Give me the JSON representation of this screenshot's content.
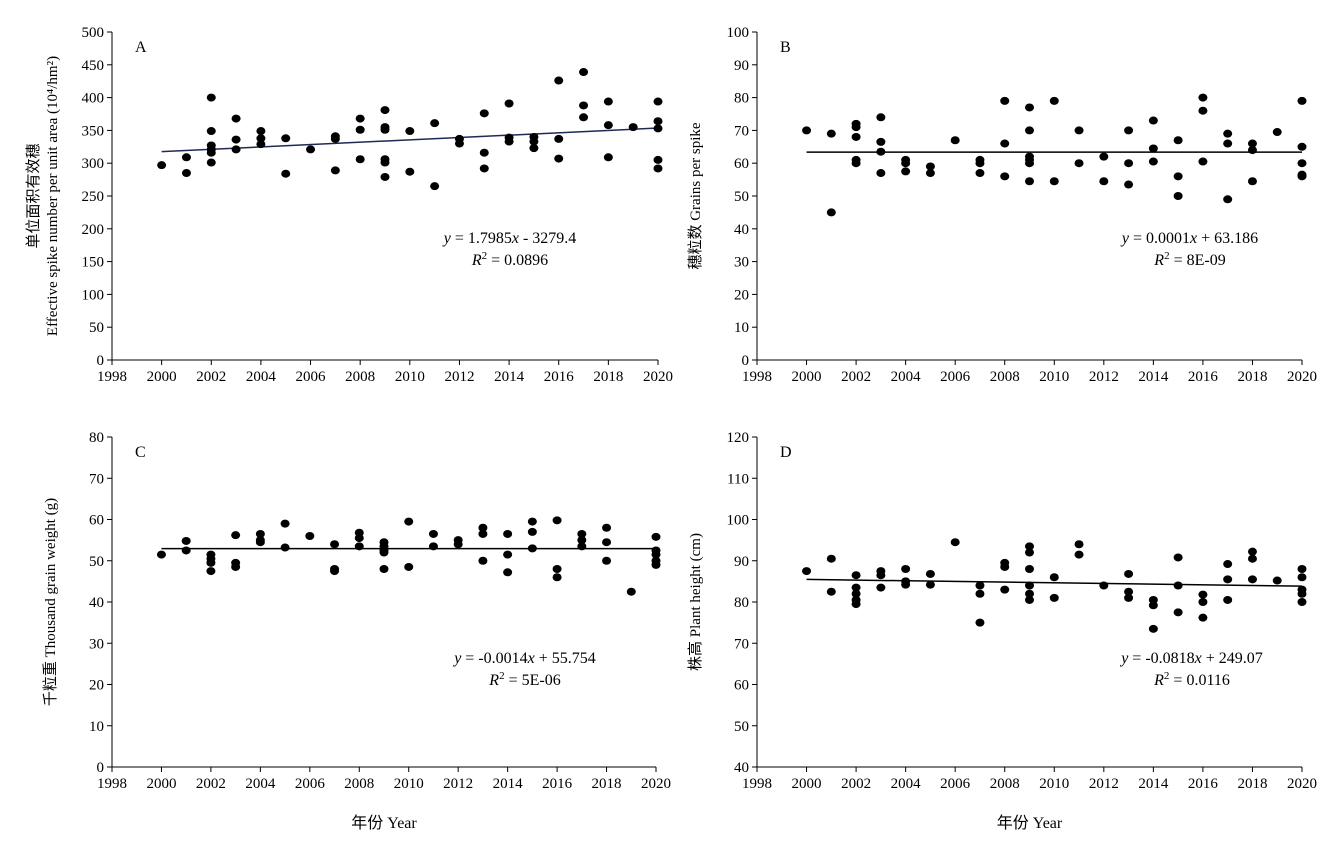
{
  "chart_data": [
    {
      "type": "scatter",
      "panel_label": "A",
      "ylabel": "单位面积有效穗 Effective spike number per unit area (10⁴/hm²)",
      "xlabel": "",
      "xlim": [
        1998,
        2020
      ],
      "ylim": [
        0,
        500
      ],
      "xticks": [
        1998,
        2000,
        2002,
        2004,
        2006,
        2008,
        2010,
        2012,
        2014,
        2016,
        2018,
        2020
      ],
      "yticks": [
        0,
        50,
        100,
        150,
        200,
        250,
        300,
        350,
        400,
        450,
        500
      ],
      "equation": "y = 1.7985x - 3279.4",
      "r2": "R² = 0.0896",
      "trend": {
        "slope": 1.7985,
        "intercept": -3279.4
      },
      "points": [
        [
          2000,
          297
        ],
        [
          2001,
          285
        ],
        [
          2001,
          309
        ],
        [
          2002,
          400
        ],
        [
          2002,
          349
        ],
        [
          2002,
          327
        ],
        [
          2002,
          321
        ],
        [
          2002,
          316
        ],
        [
          2002,
          301
        ],
        [
          2003,
          368
        ],
        [
          2003,
          336
        ],
        [
          2003,
          321
        ],
        [
          2004,
          349
        ],
        [
          2004,
          338
        ],
        [
          2004,
          329
        ],
        [
          2005,
          338
        ],
        [
          2005,
          284
        ],
        [
          2006,
          321
        ],
        [
          2007,
          341
        ],
        [
          2007,
          337
        ],
        [
          2007,
          289
        ],
        [
          2008,
          368
        ],
        [
          2008,
          351
        ],
        [
          2008,
          306
        ],
        [
          2009,
          381
        ],
        [
          2009,
          355
        ],
        [
          2009,
          351
        ],
        [
          2009,
          306
        ],
        [
          2009,
          301
        ],
        [
          2009,
          279
        ],
        [
          2010,
          349
        ],
        [
          2010,
          287
        ],
        [
          2011,
          361
        ],
        [
          2011,
          265
        ],
        [
          2012,
          337
        ],
        [
          2012,
          330
        ],
        [
          2013,
          376
        ],
        [
          2013,
          316
        ],
        [
          2013,
          292
        ],
        [
          2014,
          391
        ],
        [
          2014,
          339
        ],
        [
          2014,
          333
        ],
        [
          2015,
          340
        ],
        [
          2015,
          333
        ],
        [
          2015,
          323
        ],
        [
          2016,
          426
        ],
        [
          2016,
          337
        ],
        [
          2016,
          307
        ],
        [
          2017,
          439
        ],
        [
          2017,
          388
        ],
        [
          2017,
          370
        ],
        [
          2018,
          394
        ],
        [
          2018,
          358
        ],
        [
          2018,
          309
        ],
        [
          2019,
          355
        ],
        [
          2020,
          394
        ],
        [
          2020,
          364
        ],
        [
          2020,
          353
        ],
        [
          2020,
          305
        ],
        [
          2020,
          292
        ]
      ]
    },
    {
      "type": "scatter",
      "panel_label": "B",
      "ylabel": "穗粒数 Grains per spike",
      "xlabel": "",
      "xlim": [
        1998,
        2020
      ],
      "ylim": [
        0,
        100
      ],
      "xticks": [
        1998,
        2000,
        2002,
        2004,
        2006,
        2008,
        2010,
        2012,
        2014,
        2016,
        2018,
        2020
      ],
      "yticks": [
        0,
        10,
        20,
        30,
        40,
        50,
        60,
        70,
        80,
        90,
        100
      ],
      "equation": "y = 0.0001x + 63.186",
      "r2": "R² = 8E-09",
      "trend": {
        "slope": 0.0001,
        "intercept": 63.186
      },
      "points": [
        [
          2000,
          70
        ],
        [
          2001,
          69
        ],
        [
          2001,
          45
        ],
        [
          2002,
          72
        ],
        [
          2002,
          71
        ],
        [
          2002,
          68
        ],
        [
          2002,
          61
        ],
        [
          2002,
          60
        ],
        [
          2003,
          74
        ],
        [
          2003,
          66.5
        ],
        [
          2003,
          63.5
        ],
        [
          2003,
          57
        ],
        [
          2004,
          61
        ],
        [
          2004,
          60
        ],
        [
          2004,
          57.5
        ],
        [
          2005,
          59
        ],
        [
          2005,
          57
        ],
        [
          2006,
          67
        ],
        [
          2007,
          61
        ],
        [
          2007,
          60
        ],
        [
          2007,
          57
        ],
        [
          2008,
          79
        ],
        [
          2008,
          66
        ],
        [
          2008,
          56
        ],
        [
          2009,
          77
        ],
        [
          2009,
          70
        ],
        [
          2009,
          62
        ],
        [
          2009,
          61
        ],
        [
          2009,
          60
        ],
        [
          2009,
          54.5
        ],
        [
          2010,
          79
        ],
        [
          2010,
          54.5
        ],
        [
          2011,
          70
        ],
        [
          2011,
          60
        ],
        [
          2012,
          62
        ],
        [
          2012,
          54.5
        ],
        [
          2013,
          70
        ],
        [
          2013,
          60
        ],
        [
          2013,
          53.5
        ],
        [
          2014,
          73
        ],
        [
          2014,
          64.5
        ],
        [
          2014,
          60.5
        ],
        [
          2015,
          67
        ],
        [
          2015,
          56
        ],
        [
          2015,
          50
        ],
        [
          2016,
          80
        ],
        [
          2016,
          76
        ],
        [
          2016,
          60.5
        ],
        [
          2017,
          69
        ],
        [
          2017,
          66
        ],
        [
          2017,
          49
        ],
        [
          2018,
          66
        ],
        [
          2018,
          64
        ],
        [
          2018,
          54.5
        ],
        [
          2019,
          69.5
        ],
        [
          2020,
          79
        ],
        [
          2020,
          65
        ],
        [
          2020,
          60
        ],
        [
          2020,
          56.5
        ],
        [
          2020,
          56
        ]
      ]
    },
    {
      "type": "scatter",
      "panel_label": "C",
      "ylabel": "千粒重 Thousand grain weight (g)",
      "xlabel": "年份 Year",
      "xlim": [
        1998,
        2020
      ],
      "ylim": [
        0,
        80
      ],
      "xticks": [
        1998,
        2000,
        2002,
        2004,
        2006,
        2008,
        2010,
        2012,
        2014,
        2016,
        2018,
        2020
      ],
      "yticks": [
        0,
        10,
        20,
        30,
        40,
        50,
        60,
        70,
        80
      ],
      "equation": "y = -0.0014x + 55.754",
      "r2": "R² = 5E-06",
      "trend": {
        "slope": -0.0014,
        "intercept": 55.754
      },
      "points": [
        [
          2000,
          51.5
        ],
        [
          2001,
          54.8
        ],
        [
          2001,
          52.5
        ],
        [
          2002,
          51.5
        ],
        [
          2002,
          50.5
        ],
        [
          2002,
          49.5
        ],
        [
          2002,
          47.5
        ],
        [
          2003,
          56.2
        ],
        [
          2003,
          49.5
        ],
        [
          2003,
          48.5
        ],
        [
          2004,
          56.5
        ],
        [
          2004,
          55
        ],
        [
          2004,
          54.5
        ],
        [
          2005,
          59
        ],
        [
          2005,
          53.2
        ],
        [
          2006,
          56
        ],
        [
          2007,
          54
        ],
        [
          2007,
          48
        ],
        [
          2007,
          47.5
        ],
        [
          2008,
          56.8
        ],
        [
          2008,
          55.5
        ],
        [
          2008,
          53.5
        ],
        [
          2009,
          54.5
        ],
        [
          2009,
          53.5
        ],
        [
          2009,
          52.5
        ],
        [
          2009,
          52
        ],
        [
          2009,
          48
        ],
        [
          2010,
          59.5
        ],
        [
          2010,
          48.5
        ],
        [
          2011,
          56.5
        ],
        [
          2011,
          53.5
        ],
        [
          2012,
          55
        ],
        [
          2012,
          54
        ],
        [
          2013,
          58
        ],
        [
          2013,
          56.5
        ],
        [
          2013,
          50
        ],
        [
          2014,
          56.5
        ],
        [
          2014,
          51.5
        ],
        [
          2014,
          47.2
        ],
        [
          2015,
          59.5
        ],
        [
          2015,
          57
        ],
        [
          2015,
          53
        ],
        [
          2016,
          59.8
        ],
        [
          2016,
          48
        ],
        [
          2016,
          46
        ],
        [
          2017,
          56.5
        ],
        [
          2017,
          55
        ],
        [
          2017,
          53.5
        ],
        [
          2018,
          58
        ],
        [
          2018,
          54.5
        ],
        [
          2018,
          50
        ],
        [
          2019,
          42.5
        ],
        [
          2020,
          55.8
        ],
        [
          2020,
          52.5
        ],
        [
          2020,
          51.5
        ],
        [
          2020,
          50
        ],
        [
          2020,
          49
        ]
      ]
    },
    {
      "type": "scatter",
      "panel_label": "D",
      "ylabel": "株高 Plant height (cm)",
      "xlabel": "年份 Year",
      "xlim": [
        1998,
        2020
      ],
      "ylim": [
        40,
        120
      ],
      "xticks": [
        1998,
        2000,
        2002,
        2004,
        2006,
        2008,
        2010,
        2012,
        2014,
        2016,
        2018,
        2020
      ],
      "yticks": [
        40,
        50,
        60,
        70,
        80,
        90,
        100,
        110,
        120
      ],
      "equation": "y = -0.0818x + 249.07",
      "r2": "R² = 0.0116",
      "trend": {
        "slope": -0.0818,
        "intercept": 249.07
      },
      "points": [
        [
          2000,
          87.5
        ],
        [
          2001,
          90.5
        ],
        [
          2001,
          82.5
        ],
        [
          2002,
          86.5
        ],
        [
          2002,
          83.5
        ],
        [
          2002,
          82
        ],
        [
          2002,
          80.5
        ],
        [
          2002,
          79.5
        ],
        [
          2003,
          87.5
        ],
        [
          2003,
          86.5
        ],
        [
          2003,
          83.5
        ],
        [
          2004,
          88
        ],
        [
          2004,
          85
        ],
        [
          2004,
          84.2
        ],
        [
          2005,
          86.8
        ],
        [
          2005,
          84.2
        ],
        [
          2006,
          94.5
        ],
        [
          2007,
          84
        ],
        [
          2007,
          82
        ],
        [
          2007,
          75
        ],
        [
          2008,
          89.5
        ],
        [
          2008,
          88.5
        ],
        [
          2008,
          83
        ],
        [
          2009,
          93.5
        ],
        [
          2009,
          92
        ],
        [
          2009,
          88
        ],
        [
          2009,
          84
        ],
        [
          2009,
          82
        ],
        [
          2009,
          80.5
        ],
        [
          2010,
          86
        ],
        [
          2010,
          81
        ],
        [
          2011,
          94
        ],
        [
          2011,
          91.5
        ],
        [
          2012,
          84
        ],
        [
          2013,
          86.8
        ],
        [
          2013,
          82.5
        ],
        [
          2013,
          81
        ],
        [
          2014,
          80.5
        ],
        [
          2014,
          79.2
        ],
        [
          2014,
          73.5
        ],
        [
          2015,
          90.8
        ],
        [
          2015,
          84
        ],
        [
          2015,
          77.5
        ],
        [
          2016,
          81.8
        ],
        [
          2016,
          80
        ],
        [
          2016,
          76.2
        ],
        [
          2017,
          89.2
        ],
        [
          2017,
          85.5
        ],
        [
          2017,
          80.5
        ],
        [
          2018,
          92.2
        ],
        [
          2018,
          90.5
        ],
        [
          2018,
          85.5
        ],
        [
          2019,
          85.2
        ],
        [
          2020,
          88
        ],
        [
          2020,
          86
        ],
        [
          2020,
          83
        ],
        [
          2020,
          82
        ],
        [
          2020,
          80
        ]
      ]
    }
  ]
}
